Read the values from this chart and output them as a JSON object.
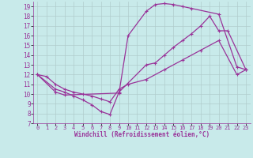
{
  "background_color": "#c8eaea",
  "grid_color": "#b0cccc",
  "line_color": "#993399",
  "xlabel": "Windchill (Refroidissement éolien,°C)",
  "xlim": [
    -0.5,
    23.5
  ],
  "ylim": [
    7,
    19.5
  ],
  "yticks": [
    7,
    8,
    9,
    10,
    11,
    12,
    13,
    14,
    15,
    16,
    17,
    18,
    19
  ],
  "xticks": [
    0,
    1,
    2,
    3,
    4,
    5,
    6,
    7,
    8,
    9,
    10,
    11,
    12,
    13,
    14,
    15,
    16,
    17,
    18,
    19,
    20,
    21,
    22,
    23
  ],
  "lines": [
    {
      "x": [
        0,
        2,
        3,
        9,
        10,
        12,
        13,
        14,
        15,
        16,
        17,
        20,
        22,
        23
      ],
      "y": [
        12,
        10.2,
        9.9,
        10.1,
        16.0,
        18.5,
        19.2,
        19.3,
        19.2,
        19.0,
        18.8,
        18.2,
        12.8,
        12.5
      ]
    },
    {
      "x": [
        0,
        2,
        3,
        4,
        5,
        6,
        7,
        8,
        9,
        12,
        13,
        14,
        15,
        16,
        17,
        18,
        19,
        20,
        21,
        23
      ],
      "y": [
        12,
        10.5,
        10.2,
        9.8,
        9.4,
        8.9,
        8.2,
        7.9,
        10.2,
        13.0,
        13.2,
        14.0,
        14.8,
        15.5,
        16.2,
        17.0,
        18.0,
        16.5,
        16.5,
        12.5
      ]
    },
    {
      "x": [
        0,
        1,
        2,
        3,
        4,
        5,
        6,
        7,
        8,
        9,
        10,
        12,
        14,
        16,
        18,
        20,
        22,
        23
      ],
      "y": [
        12,
        11.8,
        11.0,
        10.5,
        10.2,
        10.0,
        9.8,
        9.5,
        9.2,
        10.5,
        11.0,
        11.5,
        12.5,
        13.5,
        14.5,
        15.5,
        12.0,
        12.5
      ]
    }
  ]
}
